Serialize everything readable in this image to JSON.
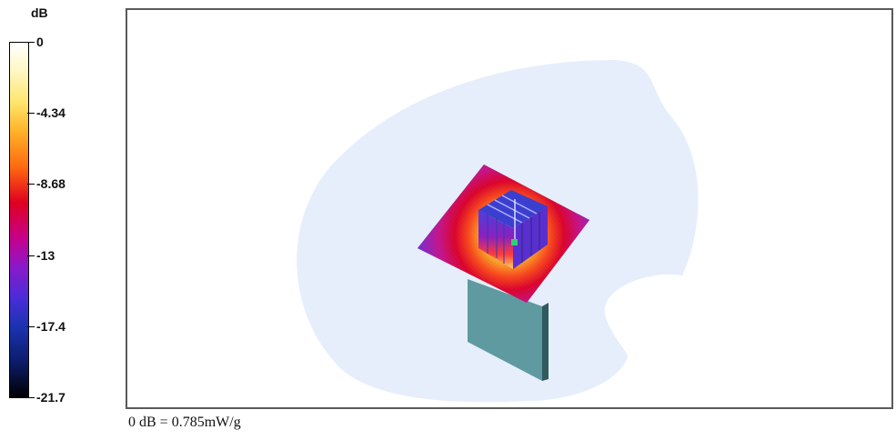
{
  "colorbar": {
    "unit": "dB",
    "ticks": [
      "0",
      "-4.34",
      "-8.68",
      "-13",
      "-17.4",
      "-21.7"
    ],
    "colors": [
      "#ffffff",
      "#ffe56a",
      "#ff6a10",
      "#e0001f",
      "#8c18c8",
      "#1b33b0",
      "#000000"
    ]
  },
  "figure": {
    "reference_note": "0 dB = 0.785mW/g",
    "phantom_color": "#e6eefb",
    "device_color": "#5f9aa0"
  }
}
